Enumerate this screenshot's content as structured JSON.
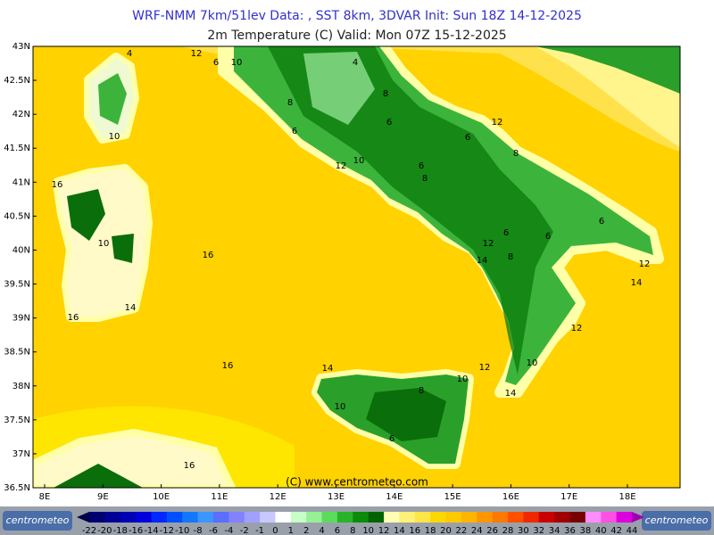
{
  "header": {
    "title": "WRF-NMM 7km/51lev   Data: , SST 8km, 3DVAR   Init: Sun 18Z 14-12-2025",
    "subtitle": "2m Temperature (C)  Valid: Mon 07Z 15-12-2025"
  },
  "axes": {
    "lat": [
      "43N",
      "42.5N",
      "42N",
      "41.5N",
      "41N",
      "40.5N",
      "40N",
      "39.5N",
      "39N",
      "38.5N",
      "38N",
      "37.5N",
      "37N",
      "36.5N"
    ],
    "lon": [
      "8E",
      "9E",
      "10E",
      "11E",
      "12E",
      "13E",
      "14E",
      "15E",
      "16E",
      "17E",
      "18E"
    ]
  },
  "map": {
    "contour_labels": [
      "4",
      "12",
      "6",
      "10",
      "4",
      "8",
      "8",
      "6",
      "6",
      "12",
      "6",
      "8",
      "10",
      "12",
      "10",
      "6",
      "8",
      "16",
      "6",
      "10",
      "16",
      "6",
      "12",
      "6",
      "8",
      "14",
      "12",
      "14",
      "16",
      "14",
      "12",
      "16",
      "10",
      "14",
      "12",
      "10",
      "8",
      "14",
      "10",
      "6",
      "16"
    ],
    "credit": "(C) www.centrometeo.com"
  },
  "colorbar": {
    "labels": [
      -22,
      -20,
      -18,
      -16,
      -14,
      -12,
      -10,
      -8,
      -6,
      -4,
      -2,
      -1,
      0,
      1,
      2,
      4,
      6,
      8,
      10,
      12,
      14,
      16,
      18,
      20,
      22,
      24,
      26,
      28,
      30,
      32,
      34,
      36,
      38,
      40,
      42,
      44
    ],
    "colors": [
      "#00004a",
      "#000070",
      "#000096",
      "#0000b4",
      "#0000dc",
      "#0028ff",
      "#0050ff",
      "#1478ff",
      "#3c96ff",
      "#5a6eff",
      "#8282ff",
      "#a0a0ff",
      "#c8c8ff",
      "#ffffff",
      "#c8ffc8",
      "#96f096",
      "#5adc5a",
      "#28b428",
      "#0a8c0a",
      "#006400",
      "#ffffb4",
      "#fff078",
      "#ffe646",
      "#ffd700",
      "#ffc800",
      "#ffb400",
      "#ff9600",
      "#ff7800",
      "#ff5000",
      "#f02800",
      "#c80000",
      "#a00000",
      "#780000",
      "#ff8cff",
      "#ff50e6",
      "#dc00dc",
      "#a000b4"
    ]
  },
  "logos": {
    "left": "centrometeo",
    "right": "centrometeo"
  }
}
